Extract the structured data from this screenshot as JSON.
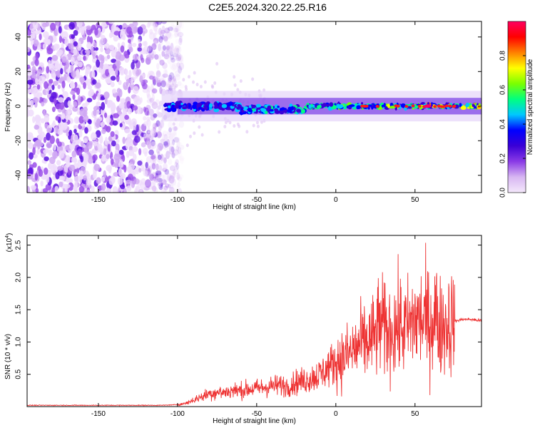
{
  "title": "C2E5.2024.320.22.25.R16",
  "chart_data": [
    {
      "type": "heatmap",
      "xlabel": "Height of straight line (km)",
      "ylabel": "Frequency (Hz)",
      "xlim": [
        -195,
        92
      ],
      "ylim": [
        -50,
        49
      ],
      "xticks": [
        -150,
        -100,
        -50,
        0,
        50
      ],
      "yticks": [
        -40,
        -20,
        0,
        20,
        40
      ],
      "grid": false,
      "colorbar": {
        "label": "Normalized spectral amplitude",
        "range": [
          0,
          1
        ],
        "ticks": [
          "0.0",
          "0.2",
          "0.4",
          "0.6",
          "0.8"
        ],
        "colors": [
          "#f4e8fb",
          "#d7b6f2",
          "#8a3ae6",
          "#3a00d6",
          "#0000ff",
          "#00c8ff",
          "#00ff80",
          "#7aff00",
          "#ffff00",
          "#ff8000",
          "#ff0000",
          "#ff0060"
        ]
      },
      "features": {
        "noise_region_height_km": [
          -195,
          -105
        ],
        "signal_band_center_hz": 0,
        "signal_band_halfwidth_hz": 4,
        "brightest_height_km": 58
      }
    },
    {
      "type": "line",
      "xlabel": "Height of straight line (km)",
      "ylabel": "SNR (10 * v/v)",
      "scale_label": "(x10",
      "scale_exp": "4",
      "color": "#ee3333",
      "xlim": [
        -195,
        92
      ],
      "ylim": [
        0,
        2.65
      ],
      "xticks": [
        -150,
        -100,
        -50,
        0,
        50
      ],
      "yticks": [
        0.5,
        1.0,
        1.5,
        2.0,
        2.5
      ],
      "ytick_labels": [
        "0.5",
        "1.0",
        "1.5",
        "2.0",
        "2.5"
      ],
      "grid": false,
      "series": [
        {
          "x": [
            -195,
            -150,
            -110,
            -100,
            -95,
            -90,
            -85,
            -80,
            -75,
            -70,
            -65,
            -60,
            -55,
            -50,
            -45,
            -40,
            -35,
            -30,
            -25,
            -20,
            -15,
            -10,
            -5,
            0,
            5,
            10,
            15,
            20,
            25,
            28,
            30,
            33,
            35,
            40,
            45,
            50,
            55,
            60,
            63,
            65,
            68,
            70,
            75,
            80,
            85,
            92
          ],
          "values": [
            0.02,
            0.02,
            0.02,
            0.03,
            0.05,
            0.1,
            0.15,
            0.2,
            0.22,
            0.22,
            0.25,
            0.25,
            0.27,
            0.28,
            0.3,
            0.32,
            0.33,
            0.32,
            0.38,
            0.4,
            0.45,
            0.5,
            0.6,
            0.7,
            0.75,
            0.85,
            0.95,
            1.0,
            1.1,
            1.3,
            1.2,
            1.15,
            1.2,
            1.25,
            1.2,
            1.35,
            1.35,
            1.3,
            1.45,
            1.2,
            1.3,
            1.28,
            1.32,
            1.35,
            1.35,
            1.33
          ]
        }
      ]
    }
  ]
}
